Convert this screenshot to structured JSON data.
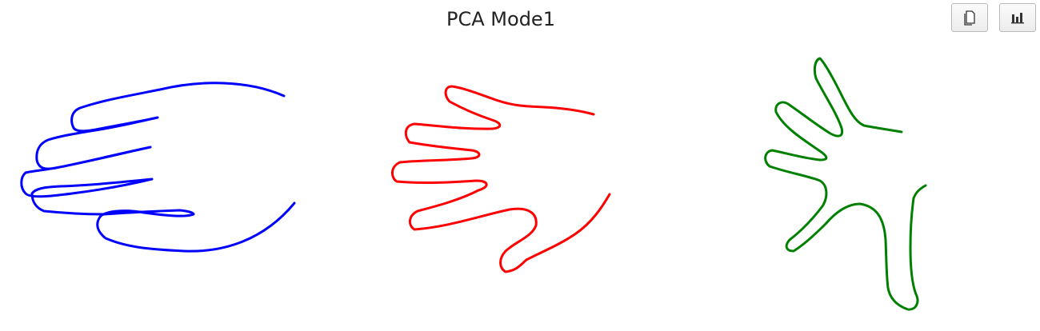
{
  "chart_data": {
    "type": "line",
    "title": "PCA Mode1",
    "xlabel": "",
    "ylabel": "",
    "axes_visible": false,
    "grid": false,
    "legend": false,
    "series": [
      {
        "color": "#0000ff",
        "style": "solid"
      },
      {
        "color": "#ff0000",
        "style": "solid"
      },
      {
        "color": "#008000",
        "style": "solid"
      }
    ]
  },
  "toolbar": {
    "copy_icon": "copy-icon",
    "chart_icon": "bar-chart-icon"
  }
}
